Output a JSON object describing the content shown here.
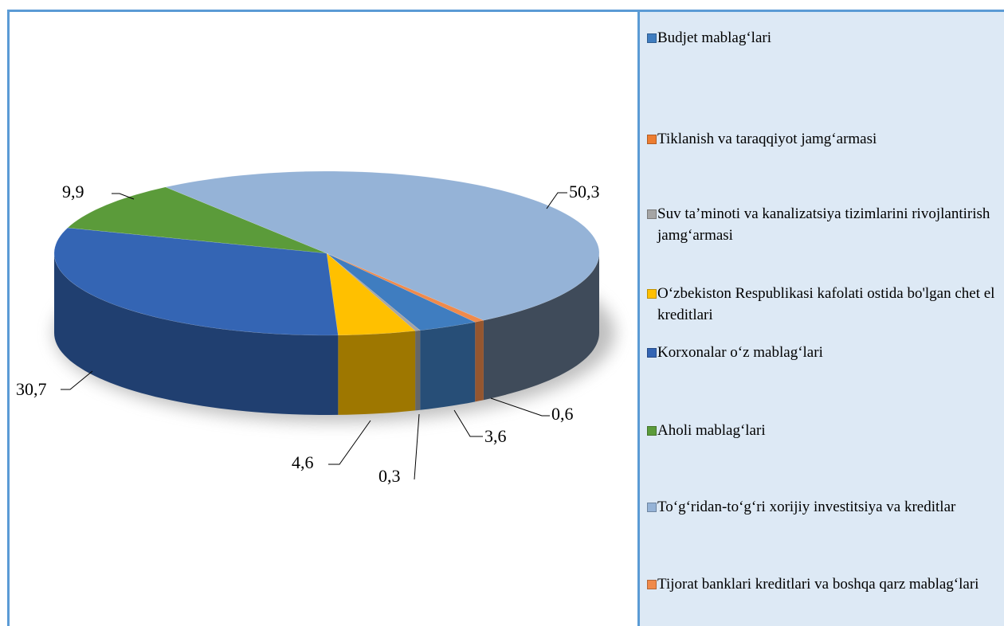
{
  "chart_data": {
    "type": "pie3d",
    "categories": [
      "Budjet mablag‘lari",
      "Tiklanish va taraqqiyot jamg‘armasi",
      "Suv ta’minoti va kanalizatsiya tizimlarini rivojlantirish jamg‘armasi",
      "O‘zbekiston Respublikasi kafolati ostida bo'lgan chet el kreditlari",
      "Korxonalar o‘z mablag‘lari",
      "Aholi mablag‘lari",
      "To‘g‘ridan-to‘g‘ri xorijiy investitsiya va kreditlar",
      "Tijorat banklari kreditlari va boshqa qarz mablag‘lari"
    ],
    "values": [
      3.6,
      0,
      0.3,
      4.6,
      30.7,
      9.9,
      50.3,
      0.6
    ],
    "value_labels": [
      "3,6",
      null,
      "0,3",
      "4,6",
      "30,7",
      "9,9",
      "50,3",
      "0,6"
    ],
    "colors": [
      "#3f7dc0",
      "#ed7d31",
      "#a5a5a5",
      "#ffc000",
      "#3465b4",
      "#5b9b3a",
      "#95b3d7",
      "#f08a4b"
    ],
    "legend": "right"
  }
}
